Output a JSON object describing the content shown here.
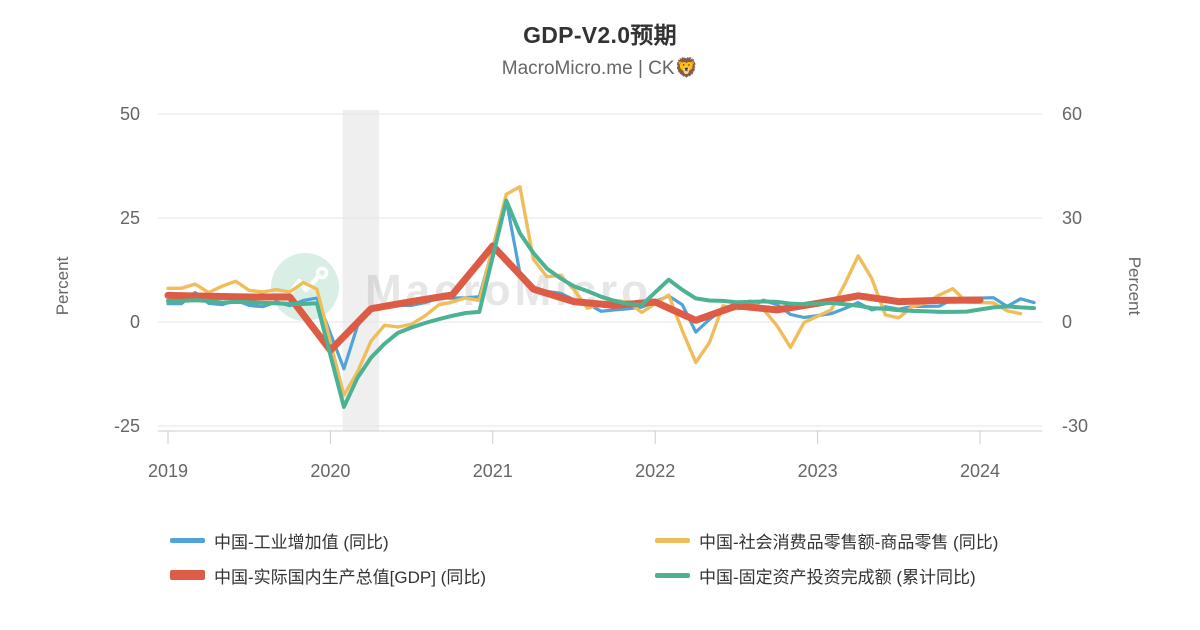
{
  "title": "GDP-V2.0预期",
  "subtitle": "MacroMicro.me | CK🦁",
  "watermark": {
    "text": "MacroMicro"
  },
  "axes": {
    "left_label": "Percent",
    "right_label": "Percent"
  },
  "legend": {
    "items": [
      {
        "label": "中国-工业增加值 (同比)",
        "color": "#4FA3D8",
        "swatch_height": 5
      },
      {
        "label": "中国-实际国内生产总值[GDP] (同比)",
        "color": "#DC5C45",
        "swatch_height": 10
      },
      {
        "label": "中国-社会消费品零售额-商品零售 (同比)",
        "color": "#EFBD5B",
        "swatch_height": 5
      },
      {
        "label": "中国-固定资产投资完成额 (累计同比)",
        "color": "#4CB294",
        "swatch_height": 5
      }
    ]
  },
  "chart_data": {
    "type": "line",
    "title": "GDP-V2.0预期",
    "subtitle": "MacroMicro.me | CK🦁",
    "x_axis": {
      "ticks": [
        "2019",
        "2020",
        "2021",
        "2022",
        "2023",
        "2024"
      ],
      "start": "2019-01",
      "end": "2024-05"
    },
    "left_axis": {
      "label": "Percent",
      "ticks": [
        50,
        25,
        0,
        -25
      ],
      "units": "%"
    },
    "right_axis": {
      "label": "Percent",
      "ticks": [
        60,
        30,
        0,
        -30
      ],
      "units": "%"
    },
    "highlight_band": {
      "from": "2020-02",
      "to": "2020-04"
    },
    "grid": "horizontal",
    "legend_position": "bottom",
    "series": [
      {
        "name": "中国-工业增加值 (同比)",
        "color": "#4FA3D8",
        "axis": "right",
        "line_width": 3.2,
        "start": "2019-01",
        "interval_months": 1,
        "values": [
          5.3,
          5.3,
          8.5,
          5.4,
          5.0,
          6.3,
          4.8,
          4.4,
          5.8,
          4.7,
          6.2,
          6.9,
          null,
          -13.5,
          -1.1,
          3.9,
          4.4,
          4.8,
          4.8,
          5.6,
          6.9,
          6.9,
          7.0,
          7.3,
          null,
          35.1,
          14.1,
          9.8,
          8.8,
          8.3,
          6.4,
          5.3,
          3.1,
          3.5,
          3.8,
          4.3,
          null,
          7.5,
          5.0,
          -2.9,
          0.7,
          3.9,
          3.8,
          4.2,
          6.3,
          5.0,
          2.2,
          1.3,
          null,
          2.4,
          3.9,
          5.6,
          3.5,
          4.4,
          3.7,
          4.5,
          4.5,
          4.6,
          6.6,
          6.8,
          null,
          7.0,
          4.5,
          6.7,
          5.6
        ]
      },
      {
        "name": "中国-社会消费品零售额-商品零售 (同比)",
        "color": "#EFBD5B",
        "axis": "left",
        "line_width": 3.4,
        "start": "2019-01",
        "interval_months": 1,
        "values": [
          8.1,
          8.1,
          9.1,
          7.1,
          8.6,
          9.8,
          7.6,
          7.2,
          7.8,
          7.2,
          9.5,
          7.9,
          null,
          -17.6,
          -12.0,
          -4.6,
          -0.8,
          -1.2,
          -0.5,
          1.5,
          4.1,
          4.8,
          5.8,
          5.2,
          null,
          30.7,
          32.5,
          15.1,
          10.9,
          11.2,
          7.8,
          3.3,
          4.5,
          5.2,
          4.8,
          2.3,
          null,
          6.5,
          -2.1,
          -9.7,
          -5.0,
          3.9,
          3.2,
          5.1,
          3.0,
          -0.9,
          -6.1,
          -0.1,
          null,
          2.9,
          9.1,
          15.9,
          10.5,
          1.7,
          1.0,
          3.7,
          4.6,
          6.5,
          8.0,
          4.8,
          null,
          4.6,
          2.7,
          2.0
        ]
      },
      {
        "name": "中国-实际国内生产总值[GDP] (同比)",
        "color": "#DC5C45",
        "axis": "left",
        "line_width": 7,
        "start": "2019-01",
        "interval_months": 3,
        "values": [
          6.4,
          6.2,
          6.0,
          6.0,
          -6.8,
          3.2,
          4.9,
          6.5,
          18.3,
          7.9,
          4.9,
          4.0,
          4.8,
          0.4,
          3.9,
          2.9,
          4.5,
          6.3,
          4.9,
          5.2,
          5.3
        ]
      },
      {
        "name": "中国-固定资产投资完成额 (累计同比)",
        "color": "#4CB294",
        "axis": "right",
        "line_width": 4,
        "start": "2019-01",
        "interval_months": 1,
        "values": [
          6.1,
          6.1,
          6.3,
          6.1,
          5.6,
          5.8,
          5.7,
          5.5,
          5.4,
          5.2,
          5.2,
          5.4,
          null,
          -24.5,
          -16.1,
          -10.3,
          -6.3,
          -3.1,
          -1.6,
          -0.3,
          0.8,
          1.8,
          2.6,
          2.9,
          null,
          35.0,
          25.6,
          19.9,
          15.4,
          12.6,
          10.3,
          8.9,
          7.3,
          6.1,
          5.2,
          4.9,
          null,
          12.2,
          9.3,
          6.8,
          6.2,
          6.1,
          5.7,
          5.8,
          5.9,
          5.8,
          5.3,
          5.1,
          null,
          5.5,
          5.1,
          4.7,
          4.0,
          3.8,
          3.4,
          3.2,
          3.1,
          2.9,
          2.9,
          3.0,
          null,
          4.2,
          4.5,
          4.2,
          4.0
        ]
      }
    ]
  }
}
